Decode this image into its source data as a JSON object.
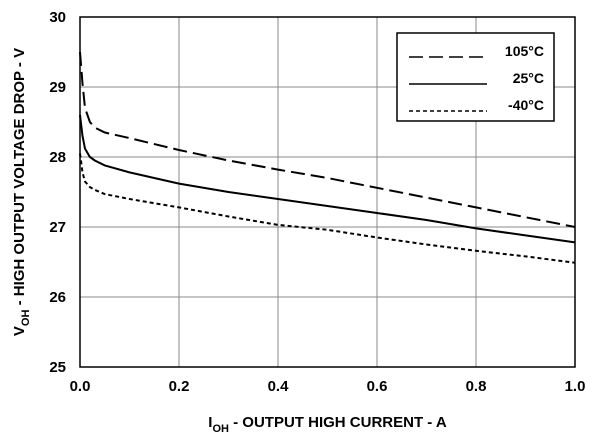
{
  "chart_data": {
    "type": "line",
    "xlabel_main": "I",
    "xlabel_sub": "OH",
    "xlabel_rest": "  - OUTPUT HIGH CURRENT - A",
    "ylabel_main": "V",
    "ylabel_sub": "OH",
    "ylabel_rest": "  - HIGH OUTPUT VOLTAGE DROP - V",
    "xlim": [
      0,
      1.0
    ],
    "ylim": [
      25,
      30
    ],
    "x_ticks": [
      0,
      0.2,
      0.4,
      0.6,
      0.8,
      1.0
    ],
    "x_tick_labels": [
      "0.0",
      "0.2",
      "0.4",
      "0.6",
      "0.8",
      "1.0"
    ],
    "y_ticks": [
      25,
      26,
      27,
      28,
      29,
      30
    ],
    "y_tick_labels": [
      "25",
      "26",
      "27",
      "28",
      "29",
      "30"
    ],
    "grid": true,
    "legend_position": "top-right",
    "series": [
      {
        "name": "105°C",
        "dash": "long-dash",
        "x": [
          0,
          0.005,
          0.01,
          0.02,
          0.03,
          0.05,
          0.1,
          0.2,
          0.3,
          0.4,
          0.5,
          0.6,
          0.7,
          0.8,
          0.9,
          1.0
        ],
        "y": [
          29.5,
          29.05,
          28.7,
          28.5,
          28.42,
          28.35,
          28.27,
          28.1,
          27.95,
          27.82,
          27.7,
          27.56,
          27.42,
          27.28,
          27.14,
          27.0
        ]
      },
      {
        "name": "25°C",
        "dash": "solid",
        "x": [
          0,
          0.005,
          0.01,
          0.02,
          0.03,
          0.05,
          0.1,
          0.2,
          0.3,
          0.4,
          0.5,
          0.6,
          0.7,
          0.8,
          0.9,
          1.0
        ],
        "y": [
          28.6,
          28.3,
          28.12,
          28.0,
          27.95,
          27.88,
          27.78,
          27.62,
          27.5,
          27.4,
          27.3,
          27.2,
          27.1,
          26.98,
          26.88,
          26.78
        ]
      },
      {
        "name": "-40°C",
        "dash": "short-dash",
        "x": [
          0,
          0.005,
          0.01,
          0.02,
          0.03,
          0.05,
          0.1,
          0.2,
          0.3,
          0.4,
          0.5,
          0.6,
          0.7,
          0.8,
          0.9,
          1.0
        ],
        "y": [
          28.05,
          27.78,
          27.65,
          27.57,
          27.53,
          27.47,
          27.4,
          27.28,
          27.15,
          27.03,
          26.96,
          26.85,
          26.75,
          26.66,
          26.58,
          26.49
        ]
      }
    ]
  }
}
